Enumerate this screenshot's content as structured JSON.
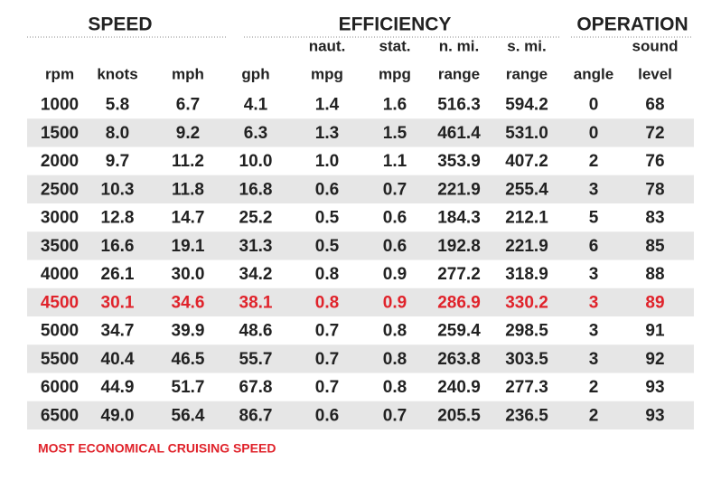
{
  "table": {
    "groups": [
      "SPEED",
      "EFFICIENCY",
      "OPERATION"
    ],
    "columns": [
      {
        "label": "rpm"
      },
      {
        "label": "knots"
      },
      {
        "label": "mph"
      },
      {
        "label": "gph"
      },
      {
        "top": "naut.",
        "label": "mpg"
      },
      {
        "top": "stat.",
        "label": "mpg"
      },
      {
        "top": "n. mi.",
        "label": "range"
      },
      {
        "top": "s. mi.",
        "label": "range"
      },
      {
        "label": "angle"
      },
      {
        "top": "sound",
        "label": "level"
      }
    ],
    "rows": [
      {
        "cells": [
          "1000",
          "5.8",
          "6.7",
          "4.1",
          "1.4",
          "1.6",
          "516.3",
          "594.2",
          "0",
          "68"
        ]
      },
      {
        "cells": [
          "1500",
          "8.0",
          "9.2",
          "6.3",
          "1.3",
          "1.5",
          "461.4",
          "531.0",
          "0",
          "72"
        ]
      },
      {
        "cells": [
          "2000",
          "9.7",
          "11.2",
          "10.0",
          "1.0",
          "1.1",
          "353.9",
          "407.2",
          "2",
          "76"
        ]
      },
      {
        "cells": [
          "2500",
          "10.3",
          "11.8",
          "16.8",
          "0.6",
          "0.7",
          "221.9",
          "255.4",
          "3",
          "78"
        ]
      },
      {
        "cells": [
          "3000",
          "12.8",
          "14.7",
          "25.2",
          "0.5",
          "0.6",
          "184.3",
          "212.1",
          "5",
          "83"
        ]
      },
      {
        "cells": [
          "3500",
          "16.6",
          "19.1",
          "31.3",
          "0.5",
          "0.6",
          "192.8",
          "221.9",
          "6",
          "85"
        ]
      },
      {
        "cells": [
          "4000",
          "26.1",
          "30.0",
          "34.2",
          "0.8",
          "0.9",
          "277.2",
          "318.9",
          "3",
          "88"
        ]
      },
      {
        "cells": [
          "4500",
          "30.1",
          "34.6",
          "38.1",
          "0.8",
          "0.9",
          "286.9",
          "330.2",
          "3",
          "89"
        ],
        "highlighted": true
      },
      {
        "cells": [
          "5000",
          "34.7",
          "39.9",
          "48.6",
          "0.7",
          "0.8",
          "259.4",
          "298.5",
          "3",
          "91"
        ]
      },
      {
        "cells": [
          "5500",
          "40.4",
          "46.5",
          "55.7",
          "0.7",
          "0.8",
          "263.8",
          "303.5",
          "3",
          "92"
        ]
      },
      {
        "cells": [
          "6000",
          "44.9",
          "51.7",
          "67.8",
          "0.7",
          "0.8",
          "240.9",
          "277.3",
          "2",
          "93"
        ]
      },
      {
        "cells": [
          "6500",
          "49.0",
          "56.4",
          "86.7",
          "0.6",
          "0.7",
          "205.5",
          "236.5",
          "2",
          "93"
        ]
      }
    ],
    "footnote": "MOST ECONOMICAL CRUISING SPEED"
  }
}
